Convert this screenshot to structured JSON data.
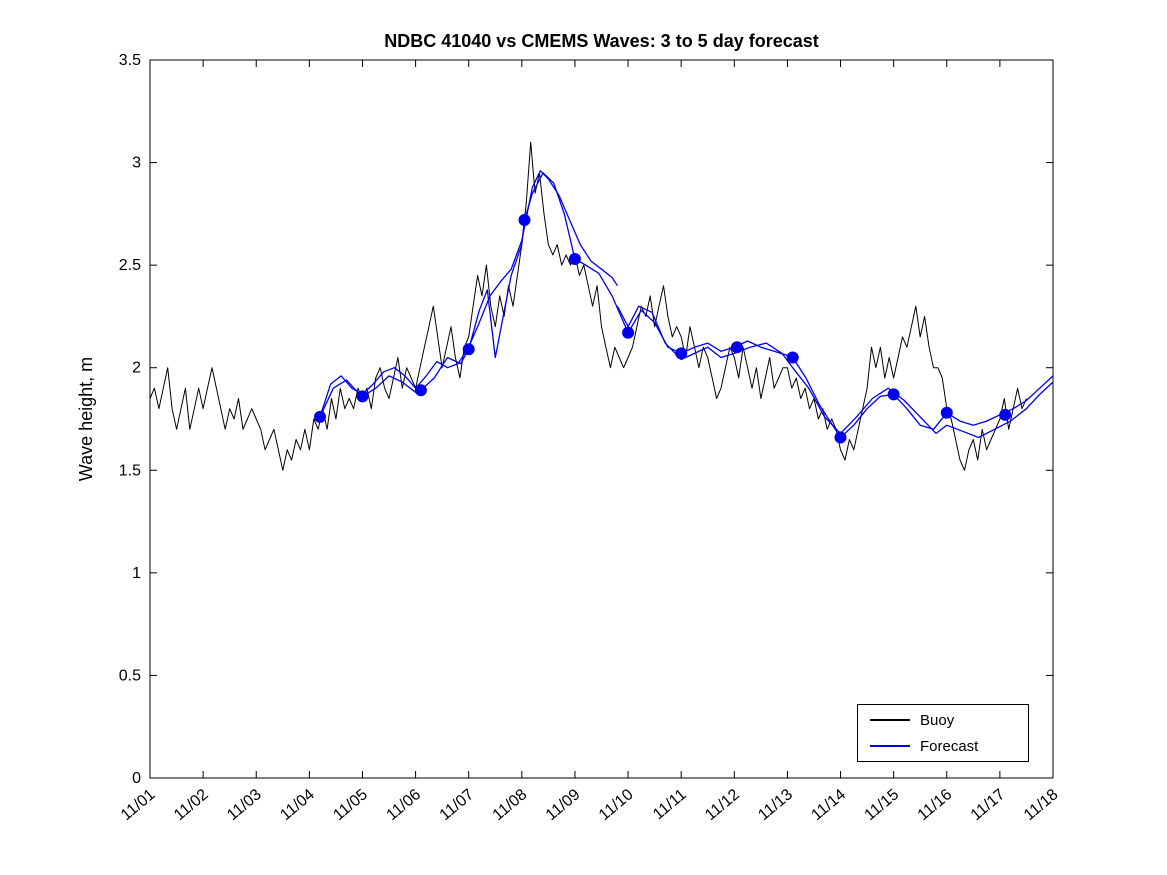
{
  "figure": {
    "title": "NDBC 41040 vs CMEMS Waves: 3 to 5 day forecast",
    "ylabel": "Wave height, m",
    "legend": {
      "position": "lower right",
      "items": [
        {
          "label": "Buoy",
          "color": "#000000"
        },
        {
          "label": "Forecast",
          "color": "#0000EE"
        }
      ]
    }
  },
  "chart_data": {
    "type": "line",
    "title": "NDBC 41040 vs CMEMS Waves: 3 to 5 day forecast",
    "xlabel": "",
    "ylabel": "Wave height, m",
    "grid": false,
    "legend_position": "lower right",
    "xlim": [
      1,
      18
    ],
    "ylim": [
      0,
      3.5
    ],
    "y_ticks": [
      0,
      0.5,
      1,
      1.5,
      2,
      2.5,
      3,
      3.5
    ],
    "y_tick_labels": [
      "0",
      "0.5",
      "1",
      "1.5",
      "2",
      "2.5",
      "3",
      "3.5"
    ],
    "x_ticks": [
      1,
      2,
      3,
      4,
      5,
      6,
      7,
      8,
      9,
      10,
      11,
      12,
      13,
      14,
      15,
      16,
      17,
      18
    ],
    "x_tick_labels": [
      "11/01",
      "11/02",
      "11/03",
      "11/04",
      "11/05",
      "11/06",
      "11/07",
      "11/08",
      "11/09",
      "11/10",
      "11/11",
      "11/12",
      "11/13",
      "11/14",
      "11/15",
      "11/16",
      "11/17",
      "11/18"
    ],
    "series": [
      {
        "name": "Buoy",
        "type": "line",
        "color": "#000000",
        "width": 1,
        "x_start": 1.0,
        "x_step": 0.0833333,
        "values": [
          1.85,
          1.9,
          1.8,
          1.9,
          2.0,
          1.8,
          1.7,
          1.8,
          1.9,
          1.7,
          1.8,
          1.9,
          1.8,
          1.9,
          2.0,
          1.9,
          1.8,
          1.7,
          1.8,
          1.75,
          1.85,
          1.7,
          1.75,
          1.8,
          1.75,
          1.7,
          1.6,
          1.65,
          1.7,
          1.6,
          1.5,
          1.6,
          1.55,
          1.65,
          1.6,
          1.7,
          1.6,
          1.75,
          1.7,
          1.8,
          1.7,
          1.85,
          1.75,
          1.9,
          1.8,
          1.85,
          1.8,
          1.9,
          1.85,
          1.9,
          1.8,
          1.95,
          2.0,
          1.9,
          1.85,
          1.95,
          2.05,
          1.9,
          2.0,
          1.95,
          1.9,
          2.0,
          2.1,
          2.2,
          2.3,
          2.15,
          2.0,
          2.1,
          2.2,
          2.05,
          1.95,
          2.1,
          2.15,
          2.3,
          2.45,
          2.35,
          2.5,
          2.3,
          2.2,
          2.35,
          2.25,
          2.4,
          2.3,
          2.45,
          2.6,
          2.8,
          3.1,
          2.85,
          2.95,
          2.75,
          2.6,
          2.55,
          2.6,
          2.5,
          2.55,
          2.5,
          2.55,
          2.45,
          2.5,
          2.4,
          2.3,
          2.4,
          2.2,
          2.1,
          2.0,
          2.1,
          2.05,
          2.0,
          2.05,
          2.1,
          2.2,
          2.3,
          2.25,
          2.35,
          2.2,
          2.3,
          2.4,
          2.25,
          2.15,
          2.2,
          2.15,
          2.05,
          2.2,
          2.1,
          2.0,
          2.1,
          2.05,
          1.95,
          1.85,
          1.9,
          2.0,
          2.1,
          2.05,
          1.95,
          2.1,
          2.0,
          1.9,
          2.0,
          1.85,
          1.95,
          2.05,
          1.9,
          1.95,
          2.0,
          2.0,
          1.9,
          1.95,
          1.85,
          1.9,
          1.8,
          1.85,
          1.75,
          1.8,
          1.7,
          1.75,
          1.7,
          1.6,
          1.55,
          1.65,
          1.6,
          1.7,
          1.8,
          1.9,
          2.1,
          2.0,
          2.1,
          1.95,
          2.05,
          1.95,
          2.05,
          2.15,
          2.1,
          2.2,
          2.3,
          2.15,
          2.25,
          2.1,
          2.0,
          2.0,
          1.95,
          1.8,
          1.75,
          1.65,
          1.55,
          1.5,
          1.6,
          1.65,
          1.55,
          1.7,
          1.6,
          1.65,
          1.7,
          1.75,
          1.85,
          1.7,
          1.8,
          1.9,
          1.8,
          1.85
        ]
      },
      {
        "name": "Forecast segment 1",
        "type": "line",
        "color": "#0000EE",
        "width": 1.3,
        "points": [
          [
            4.2,
            1.76
          ],
          [
            4.4,
            1.92
          ],
          [
            4.6,
            1.96
          ],
          [
            4.8,
            1.9
          ],
          [
            5.0,
            1.87
          ],
          [
            5.2,
            1.92
          ],
          [
            5.4,
            1.98
          ],
          [
            5.6,
            2.0
          ],
          [
            5.8,
            1.96
          ],
          [
            6.0,
            1.9
          ],
          [
            6.2,
            1.96
          ],
          [
            6.4,
            2.03
          ],
          [
            6.6,
            2.0
          ],
          [
            6.8,
            2.02
          ],
          [
            7.0,
            2.1
          ],
          [
            7.2,
            2.22
          ],
          [
            7.4,
            2.35
          ],
          [
            7.6,
            2.42
          ],
          [
            7.8,
            2.48
          ],
          [
            8.0,
            2.62
          ],
          [
            8.2,
            2.88
          ],
          [
            8.35,
            2.96
          ],
          [
            8.5,
            2.92
          ],
          [
            8.7,
            2.84
          ],
          [
            8.9,
            2.72
          ],
          [
            9.1,
            2.6
          ],
          [
            9.3,
            2.52
          ],
          [
            9.5,
            2.48
          ],
          [
            9.7,
            2.44
          ],
          [
            9.8,
            2.4
          ]
        ]
      },
      {
        "name": "Forecast segment 2",
        "type": "line",
        "color": "#0000EE",
        "width": 1.3,
        "points": [
          [
            4.2,
            1.76
          ],
          [
            4.45,
            1.9
          ],
          [
            4.7,
            1.94
          ],
          [
            4.95,
            1.87
          ],
          [
            5.0,
            1.86
          ],
          [
            5.25,
            1.9
          ],
          [
            5.5,
            1.96
          ],
          [
            5.75,
            1.93
          ],
          [
            6.0,
            1.88
          ],
          [
            6.1,
            1.89
          ],
          [
            6.35,
            1.95
          ],
          [
            6.6,
            2.05
          ],
          [
            6.85,
            2.02
          ],
          [
            7.0,
            2.09
          ],
          [
            7.2,
            2.28
          ],
          [
            7.35,
            2.38
          ],
          [
            7.5,
            2.05
          ],
          [
            7.65,
            2.25
          ],
          [
            7.8,
            2.45
          ],
          [
            8.0,
            2.6
          ],
          [
            8.05,
            2.72
          ],
          [
            8.2,
            2.85
          ],
          [
            8.4,
            2.95
          ],
          [
            8.6,
            2.9
          ],
          [
            8.8,
            2.75
          ],
          [
            9.0,
            2.53
          ],
          [
            9.2,
            2.5
          ],
          [
            9.45,
            2.46
          ],
          [
            9.7,
            2.35
          ],
          [
            10.0,
            2.17
          ],
          [
            10.25,
            2.28
          ],
          [
            10.5,
            2.22
          ],
          [
            10.75,
            2.1
          ],
          [
            11.0,
            2.07
          ],
          [
            11.25,
            2.1
          ],
          [
            11.5,
            2.12
          ],
          [
            11.75,
            2.08
          ],
          [
            12.0,
            2.1
          ],
          [
            12.25,
            2.13
          ],
          [
            12.5,
            2.1
          ],
          [
            12.75,
            2.08
          ],
          [
            13.0,
            2.06
          ],
          [
            13.1,
            2.05
          ],
          [
            13.35,
            1.95
          ],
          [
            13.6,
            1.82
          ],
          [
            13.85,
            1.72
          ],
          [
            14.0,
            1.66
          ],
          [
            14.25,
            1.72
          ],
          [
            14.5,
            1.8
          ],
          [
            14.75,
            1.86
          ],
          [
            15.0,
            1.87
          ],
          [
            15.25,
            1.8
          ],
          [
            15.5,
            1.72
          ],
          [
            15.75,
            1.7
          ],
          [
            16.0,
            1.78
          ],
          [
            16.25,
            1.74
          ],
          [
            16.5,
            1.72
          ],
          [
            16.75,
            1.74
          ],
          [
            17.0,
            1.77
          ],
          [
            17.25,
            1.8
          ],
          [
            17.5,
            1.84
          ],
          [
            17.75,
            1.9
          ],
          [
            18.0,
            1.96
          ]
        ]
      },
      {
        "name": "Forecast segment 3",
        "type": "line",
        "color": "#0000EE",
        "width": 1.3,
        "points": [
          [
            9.8,
            2.3
          ],
          [
            10.0,
            2.2
          ],
          [
            10.2,
            2.3
          ],
          [
            10.45,
            2.27
          ],
          [
            10.7,
            2.12
          ],
          [
            11.0,
            2.04
          ],
          [
            11.25,
            2.07
          ],
          [
            11.5,
            2.1
          ],
          [
            11.75,
            2.05
          ],
          [
            12.0,
            2.07
          ],
          [
            12.3,
            2.1
          ],
          [
            12.6,
            2.12
          ],
          [
            12.9,
            2.07
          ],
          [
            13.1,
            2.0
          ],
          [
            13.4,
            1.9
          ],
          [
            13.7,
            1.76
          ],
          [
            14.0,
            1.68
          ],
          [
            14.3,
            1.76
          ],
          [
            14.6,
            1.85
          ],
          [
            14.9,
            1.9
          ],
          [
            15.2,
            1.84
          ],
          [
            15.5,
            1.76
          ],
          [
            15.8,
            1.68
          ],
          [
            16.0,
            1.72
          ],
          [
            16.3,
            1.69
          ],
          [
            16.6,
            1.66
          ],
          [
            16.9,
            1.7
          ],
          [
            17.2,
            1.74
          ],
          [
            17.5,
            1.8
          ],
          [
            17.75,
            1.87
          ],
          [
            18.0,
            1.93
          ]
        ]
      },
      {
        "name": "Forecast daily markers",
        "type": "scatter",
        "color": "#0000EE",
        "marker_size": 6,
        "points": [
          [
            4.2,
            1.76
          ],
          [
            5.0,
            1.86
          ],
          [
            6.1,
            1.89
          ],
          [
            7.0,
            2.09
          ],
          [
            8.05,
            2.72
          ],
          [
            9.0,
            2.53
          ],
          [
            10.0,
            2.17
          ],
          [
            11.0,
            2.07
          ],
          [
            12.05,
            2.1
          ],
          [
            13.1,
            2.05
          ],
          [
            14.0,
            1.66
          ],
          [
            15.0,
            1.87
          ],
          [
            16.0,
            1.78
          ],
          [
            17.1,
            1.77
          ]
        ]
      }
    ]
  }
}
